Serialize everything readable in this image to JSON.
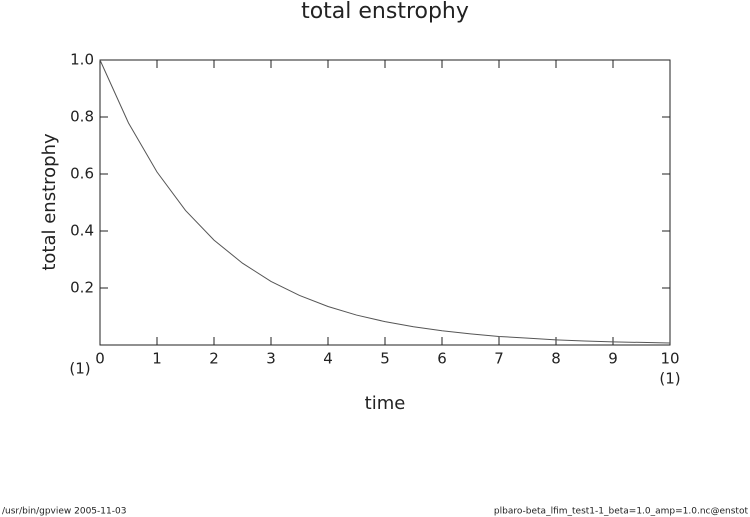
{
  "chart_data": {
    "type": "line",
    "title": "total enstrophy",
    "x_label": "time",
    "y_label": "total enstrophy",
    "x_unit_label": "(1)",
    "y_unit_label": "(1)",
    "x": [
      0,
      0.5,
      1,
      1.5,
      2,
      2.5,
      3,
      3.5,
      4,
      4.5,
      5,
      5.5,
      6,
      6.5,
      7,
      7.5,
      8,
      8.5,
      9,
      9.5,
      10
    ],
    "series": [
      {
        "name": "total enstrophy",
        "color": "#555555",
        "values": [
          1,
          0.779,
          0.607,
          0.472,
          0.368,
          0.287,
          0.223,
          0.174,
          0.135,
          0.105,
          0.082,
          0.064,
          0.05,
          0.039,
          0.03,
          0.024,
          0.018,
          0.014,
          0.011,
          0.009,
          0.007
        ]
      }
    ],
    "xlim": [
      0,
      10
    ],
    "ylim": [
      0,
      1
    ],
    "xticks": [
      0,
      1,
      2,
      3,
      4,
      5,
      6,
      7,
      8,
      9,
      10
    ],
    "yticks": [
      0.2,
      0.4,
      0.6,
      0.8,
      {
        "value": 1,
        "label": "1.0"
      }
    ],
    "grid": false
  },
  "footer": {
    "left": "/usr/bin/gpview   2005-11-03",
    "right": "plbaro-beta_lfim_test1-1_beta=1.0_amp=1.0.nc@enstot"
  }
}
